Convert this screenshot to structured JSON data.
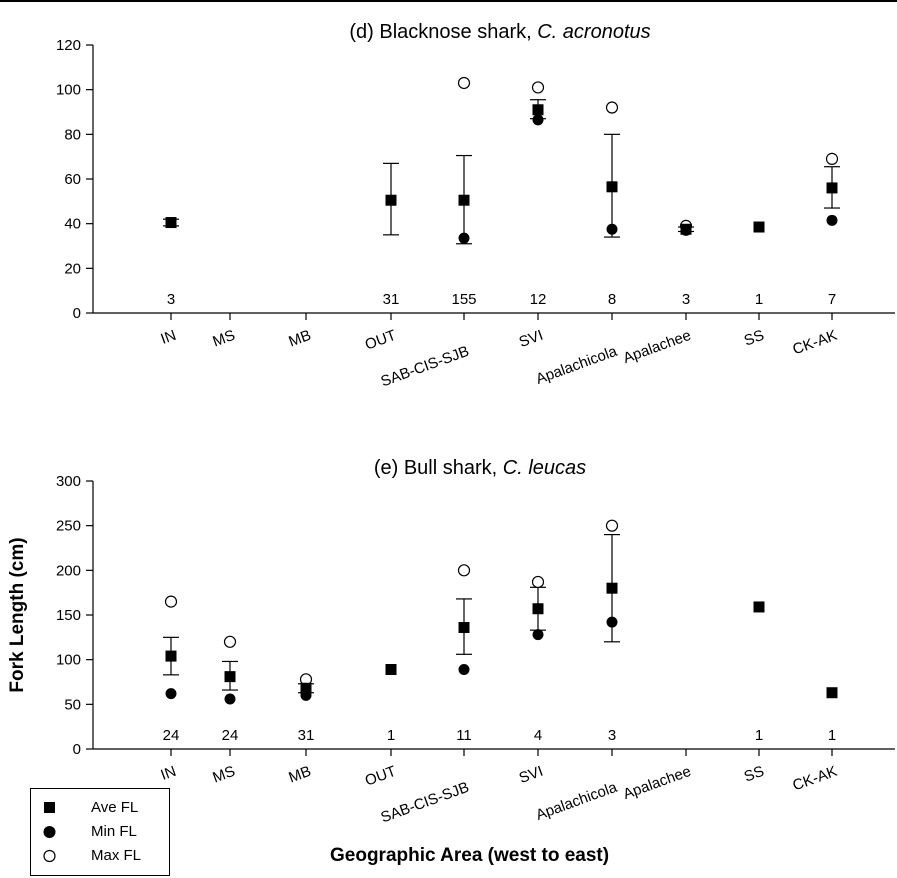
{
  "chart_data": [
    {
      "type": "scatter",
      "title_plain": "(d) Blacknose shark, ",
      "title_italic": "C. acronotus",
      "xlabel": "",
      "ylabel": "",
      "categories": [
        "IN",
        "MS",
        "MB",
        "OUT",
        "SAB-CIS-SJB",
        "SVI",
        "Apalachicola",
        "Apalachee",
        "SS",
        "CK-AK"
      ],
      "ylim": [
        0,
        120
      ],
      "yticks": [
        0,
        20,
        40,
        60,
        80,
        100,
        120
      ],
      "sample_sizes": [
        "3",
        "",
        "",
        "31",
        "155",
        "12",
        "8",
        "3",
        "1",
        "7"
      ],
      "series": [
        {
          "name": "Ave FL",
          "values": [
            40.5,
            null,
            null,
            50.5,
            50.5,
            91,
            56.5,
            37.5,
            38.5,
            56
          ]
        },
        {
          "name": "Min FL",
          "values": [
            40.5,
            null,
            null,
            null,
            33.5,
            86.5,
            37.5,
            37,
            null,
            41.5
          ]
        },
        {
          "name": "Max FL",
          "values": [
            null,
            null,
            null,
            null,
            103,
            101,
            92,
            39,
            null,
            69
          ]
        }
      ],
      "error_bars": [
        [
          39,
          42
        ],
        null,
        null,
        [
          35,
          67
        ],
        [
          31,
          70.5
        ],
        [
          87,
          95.5
        ],
        [
          34,
          80
        ],
        [
          36.5,
          38.5
        ],
        null,
        [
          47,
          65.5
        ]
      ]
    },
    {
      "type": "scatter",
      "title_plain": "(e) Bull shark, ",
      "title_italic": "C. leucas",
      "xlabel": "Geographic Area (west to east)",
      "ylabel": "Fork Length (cm)",
      "categories": [
        "IN",
        "MS",
        "MB",
        "OUT",
        "SAB-CIS-SJB",
        "SVI",
        "Apalachicola",
        "Apalachee",
        "SS",
        "CK-AK"
      ],
      "ylim": [
        0,
        300
      ],
      "yticks": [
        0,
        50,
        100,
        150,
        200,
        250,
        300
      ],
      "sample_sizes": [
        "24",
        "24",
        "31",
        "1",
        "11",
        "4",
        "3",
        "",
        "1",
        "1"
      ],
      "series": [
        {
          "name": "Ave FL",
          "values": [
            104,
            81,
            68,
            89,
            136,
            157,
            180,
            null,
            159,
            63
          ]
        },
        {
          "name": "Min FL",
          "values": [
            62,
            56,
            60,
            null,
            89,
            128,
            142,
            null,
            null,
            null
          ]
        },
        {
          "name": "Max FL",
          "values": [
            165,
            120,
            78,
            null,
            200,
            187,
            250,
            null,
            null,
            null
          ]
        }
      ],
      "error_bars": [
        [
          83,
          125
        ],
        [
          66,
          98
        ],
        [
          63,
          73
        ],
        null,
        [
          106,
          168
        ],
        [
          133,
          181
        ],
        [
          120,
          240
        ],
        null,
        null,
        null
      ]
    }
  ],
  "legend": [
    {
      "label": "Ave FL",
      "symbol": "filled-square"
    },
    {
      "label": "Min FL",
      "symbol": "filled-circle"
    },
    {
      "label": "Max FL",
      "symbol": "open-circle"
    }
  ],
  "colors": {
    "marker": "#000000",
    "axis": "#000000",
    "background": "#ffffff"
  }
}
